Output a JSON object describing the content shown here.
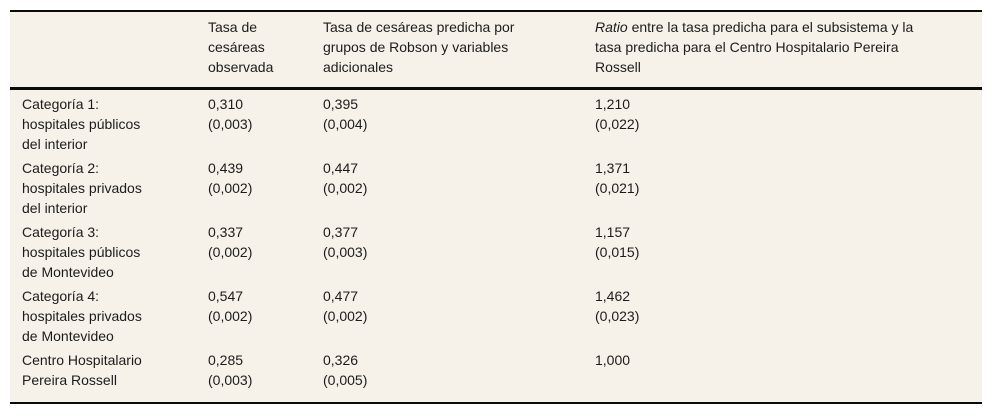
{
  "meta": {
    "table_background": "#f6f2ea",
    "rule_color": "#0b0b0b",
    "text_color": "#1c1c1c"
  },
  "table": {
    "header": {
      "col1": "",
      "col2": "Tasa de\ncesáreas\nobservada",
      "col3": "Tasa de cesáreas predicha por\ngrupos de Robson y variables\nadicionales",
      "col4_italic": "Ratio",
      "col4_text": " entre la tasa predicha para el subsistema y la\ntasa predicha para el Centro Hospitalario Pereira\nRossell"
    },
    "rows": [
      {
        "label": "Categoría 1:\nhospitales públicos\ndel interior",
        "observed": "0,310",
        "observed_se": "(0,003)",
        "predicted": "0,395",
        "predicted_se": "(0,004)",
        "ratio": "1,210",
        "ratio_se": "(0,022)"
      },
      {
        "label": "Categoría 2:\nhospitales privados\ndel interior",
        "observed": "0,439",
        "observed_se": "(0,002)",
        "predicted": "0,447",
        "predicted_se": "(0,002)",
        "ratio": "1,371",
        "ratio_se": "(0,021)"
      },
      {
        "label": "Categoría 3:\nhospitales públicos\nde Montevideo",
        "observed": "0,337",
        "observed_se": "(0,002)",
        "predicted": "0,377",
        "predicted_se": "(0,003)",
        "ratio": "1,157",
        "ratio_se": "(0,015)"
      },
      {
        "label": "Categoría 4:\nhospitales privados\nde Montevideo",
        "observed": "0,547",
        "observed_se": "(0,002)",
        "predicted": "0,477",
        "predicted_se": "(0,002)",
        "ratio": "1,462",
        "ratio_se": "(0,023)"
      },
      {
        "label": "Centro Hospitalario\nPereira Rossell",
        "observed": "0,285",
        "observed_se": "(0,003)",
        "predicted": "0,326",
        "predicted_se": "(0,005)",
        "ratio": "1,000",
        "ratio_se": ""
      }
    ]
  },
  "chart_data": {
    "type": "table",
    "columns": [
      "",
      "Tasa de cesáreas observada",
      "Tasa de cesáreas predicha por grupos de Robson y variables adicionales",
      "Ratio entre la tasa predicha para el subsistema y la tasa predicha para el Centro Hospitalario Pereira Rossell"
    ],
    "rows": [
      [
        "Categoría 1: hospitales públicos del interior",
        "0,310 (0,003)",
        "0,395 (0,004)",
        "1,210 (0,022)"
      ],
      [
        "Categoría 2: hospitales privados del interior",
        "0,439 (0,002)",
        "0,447 (0,002)",
        "1,371 (0,021)"
      ],
      [
        "Categoría 3: hospitales públicos de Montevideo",
        "0,337 (0,002)",
        "0,377 (0,003)",
        "1,157 (0,015)"
      ],
      [
        "Categoría 4: hospitales privados de Montevideo",
        "0,547 (0,002)",
        "0,477 (0,002)",
        "1,462 (0,023)"
      ],
      [
        "Centro Hospitalario Pereira Rossell",
        "0,285 (0,003)",
        "0,326 (0,005)",
        "1,000"
      ]
    ]
  }
}
